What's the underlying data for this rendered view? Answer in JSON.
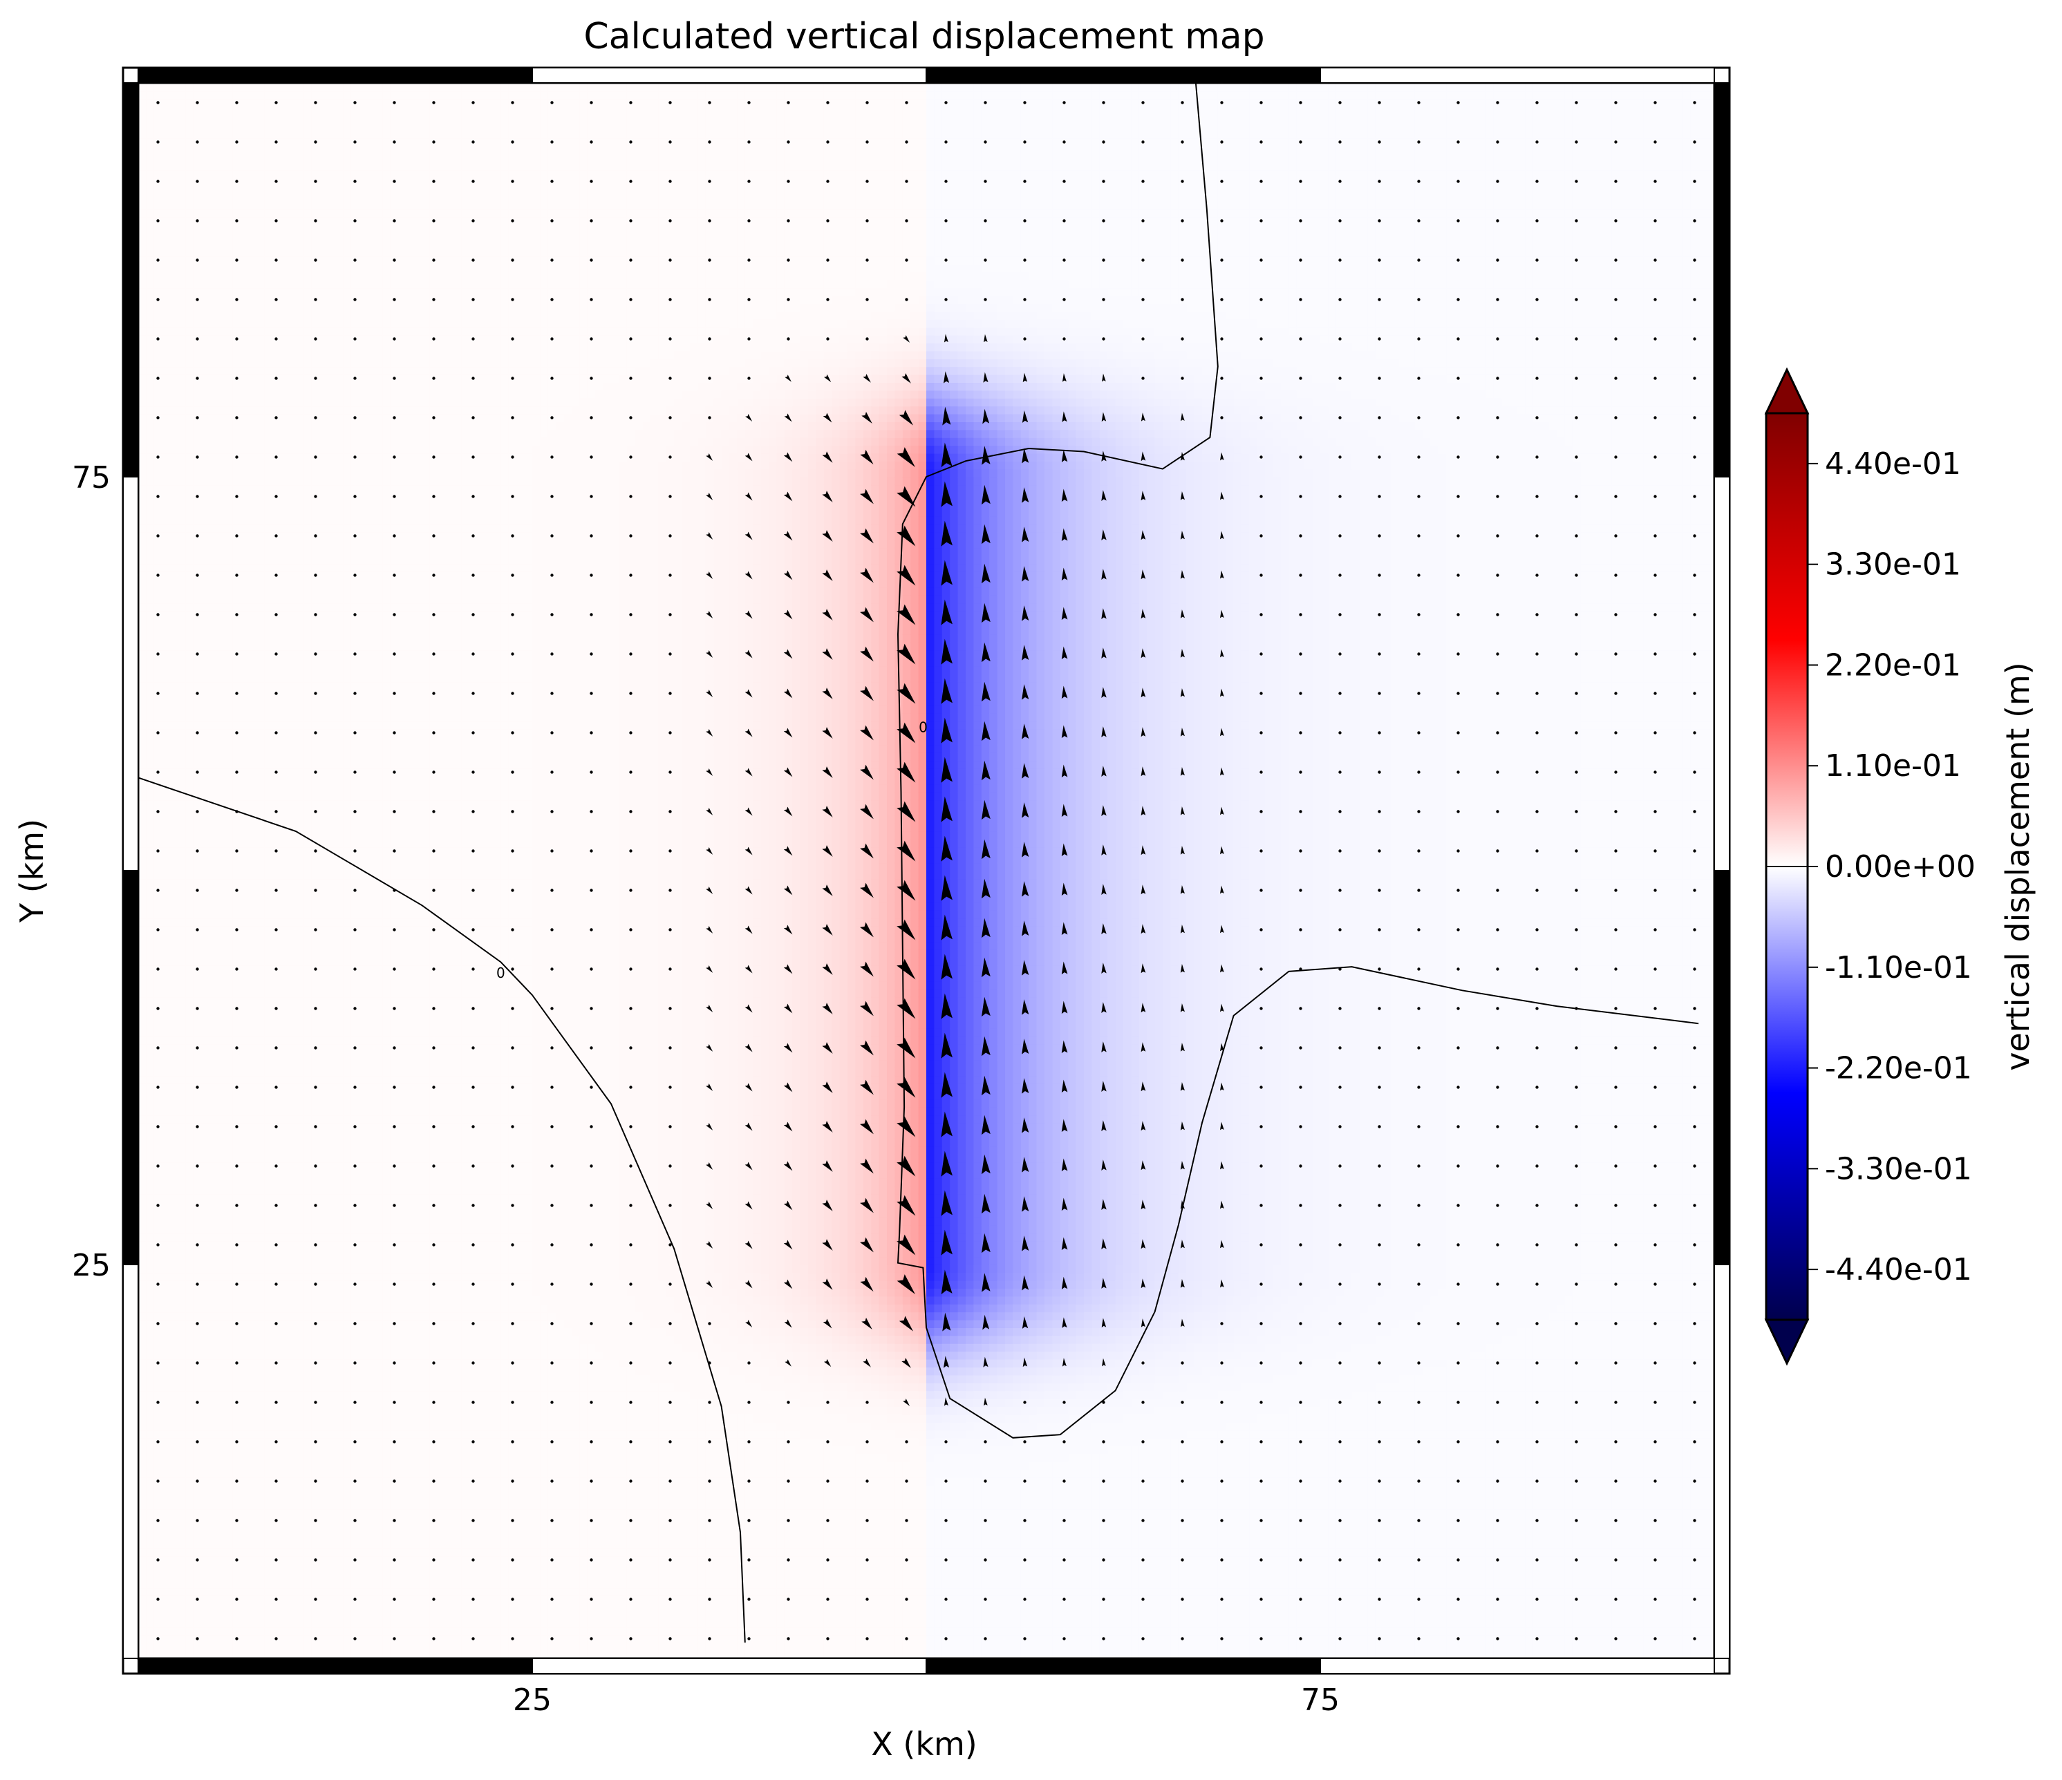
{
  "chart_data": {
    "type": "heatmap",
    "title": "Calculated vertical displacement map",
    "xlabel": "X (km)",
    "ylabel": "Y (km)",
    "xlim": [
      0,
      100
    ],
    "ylim": [
      0,
      100
    ],
    "xticks": [
      25,
      75
    ],
    "yticks": [
      25,
      75
    ],
    "fault_trace": {
      "x": 50,
      "y_range": [
        25,
        75
      ]
    },
    "contour_label": "0",
    "colorbar": {
      "label": "vertical displacement (m)",
      "min": -0.495,
      "max": 0.495,
      "ticks": [
        -0.44,
        -0.33,
        -0.22,
        -0.11,
        0.0,
        0.11,
        0.22,
        0.33,
        0.44
      ],
      "tick_labels": [
        "-4.40e-01",
        "-3.30e-01",
        "-2.20e-01",
        "-1.10e-01",
        "0.00e+00",
        "1.10e-01",
        "2.20e-01",
        "3.30e-01",
        "4.40e-01"
      ],
      "extend": "both",
      "colormap": "seismic"
    },
    "colors": {
      "positive_max": "#800000",
      "positive_mid": "#ff0000",
      "neutral": "#ffffff",
      "negative_mid": "#0000ff",
      "negative_max": "#00004d"
    },
    "field": {
      "uplift_peak_m": 0.1,
      "subsidence_peak_m": -0.22,
      "background_west_m": 0.004,
      "background_east_m": -0.004
    },
    "vectors": {
      "grid_spacing_km": 2.5,
      "symbol": "arrow"
    }
  }
}
